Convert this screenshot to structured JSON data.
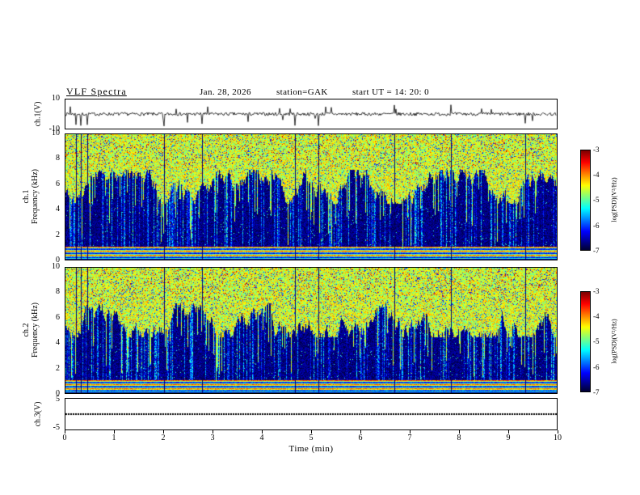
{
  "header": {
    "title": "VLF  Spectra",
    "date": "Jan. 28, 2026",
    "station": "station=GAK",
    "start_ut": "start UT  =   14: 20: 0"
  },
  "panels": {
    "waveform": {
      "label": "ch.1(V)",
      "yticks": [
        "10",
        "-10"
      ]
    },
    "spec1": {
      "channel": "ch.1",
      "ylabel": "Frequency  (kHz)",
      "yticks": [
        "10",
        "8",
        "6",
        "4",
        "2",
        "0"
      ]
    },
    "spec2": {
      "channel": "ch.2",
      "ylabel": "Frequency  (kHz)",
      "yticks": [
        "10",
        "8",
        "6",
        "4",
        "2",
        "0"
      ]
    },
    "ch3": {
      "label": "ch.3(V)",
      "yticks": [
        "5",
        "-5"
      ]
    }
  },
  "colorbar": {
    "label": "log(PSD)(V²/Hz)",
    "ticks": [
      "-3",
      "-4",
      "-5",
      "-6",
      "-7"
    ]
  },
  "xaxis": {
    "label": "Time  (min)",
    "ticks": [
      "0",
      "1",
      "2",
      "3",
      "4",
      "5",
      "6",
      "7",
      "8",
      "9",
      "10"
    ]
  },
  "chart_data": [
    {
      "type": "line",
      "name": "ch.1 voltage waveform",
      "xlabel": "Time (min)",
      "xlim": [
        0,
        10
      ],
      "ylabel": "ch.1(V)",
      "ylim": [
        -10,
        10
      ],
      "summary": "continuous noise of about ±1 V around 0 V with roughly 25 impulsive sferic spikes reaching -8 to +6 V"
    },
    {
      "type": "heatmap",
      "name": "ch.1 VLF spectrogram",
      "xlabel": "Time (min)",
      "xlim": [
        0,
        10
      ],
      "ylabel": "Frequency (kHz)",
      "ylim": [
        0,
        10
      ],
      "color_scale": {
        "label": "log(PSD)(V²/Hz)",
        "min": -7,
        "max": -3,
        "colormap": "jet"
      },
      "features": [
        "broadband green/yellow noise near -4.5 above ~5.5-6 kHz with red bursts at 8-10 kHz",
        "dark blue/black background near -6.8 between ~1 and 5.5 kHz crossed by cyan/blue vertical striations",
        "intense banded emissions near -4 below 1 kHz",
        "thin black vertical lines at times of strong sferic spikes"
      ]
    },
    {
      "type": "heatmap",
      "name": "ch.2 VLF spectrogram",
      "xlabel": "Time (min)",
      "xlim": [
        0,
        10
      ],
      "ylabel": "Frequency (kHz)",
      "ylim": [
        0,
        10
      ],
      "color_scale": {
        "label": "log(PSD)(V²/Hz)",
        "min": -7,
        "max": -3,
        "colormap": "jet"
      },
      "features": [
        "broadband green/yellow noise near -4.5 above ~5.5-6 kHz with red bursts at 8-10 kHz",
        "dark blue/black background near -6.8 between ~1 and 5.5 kHz crossed by cyan/blue vertical striations",
        "intense banded emissions near -4 below 1 kHz",
        "thin black vertical lines at times of strong sferic spikes"
      ]
    },
    {
      "type": "line",
      "name": "ch.3 voltage",
      "xlabel": "Time (min)",
      "xlim": [
        0,
        10
      ],
      "ylabel": "ch.3(V)",
      "ylim": [
        -5,
        5
      ],
      "summary": "flat dotted trace at approximately 0 V for the full interval"
    }
  ]
}
